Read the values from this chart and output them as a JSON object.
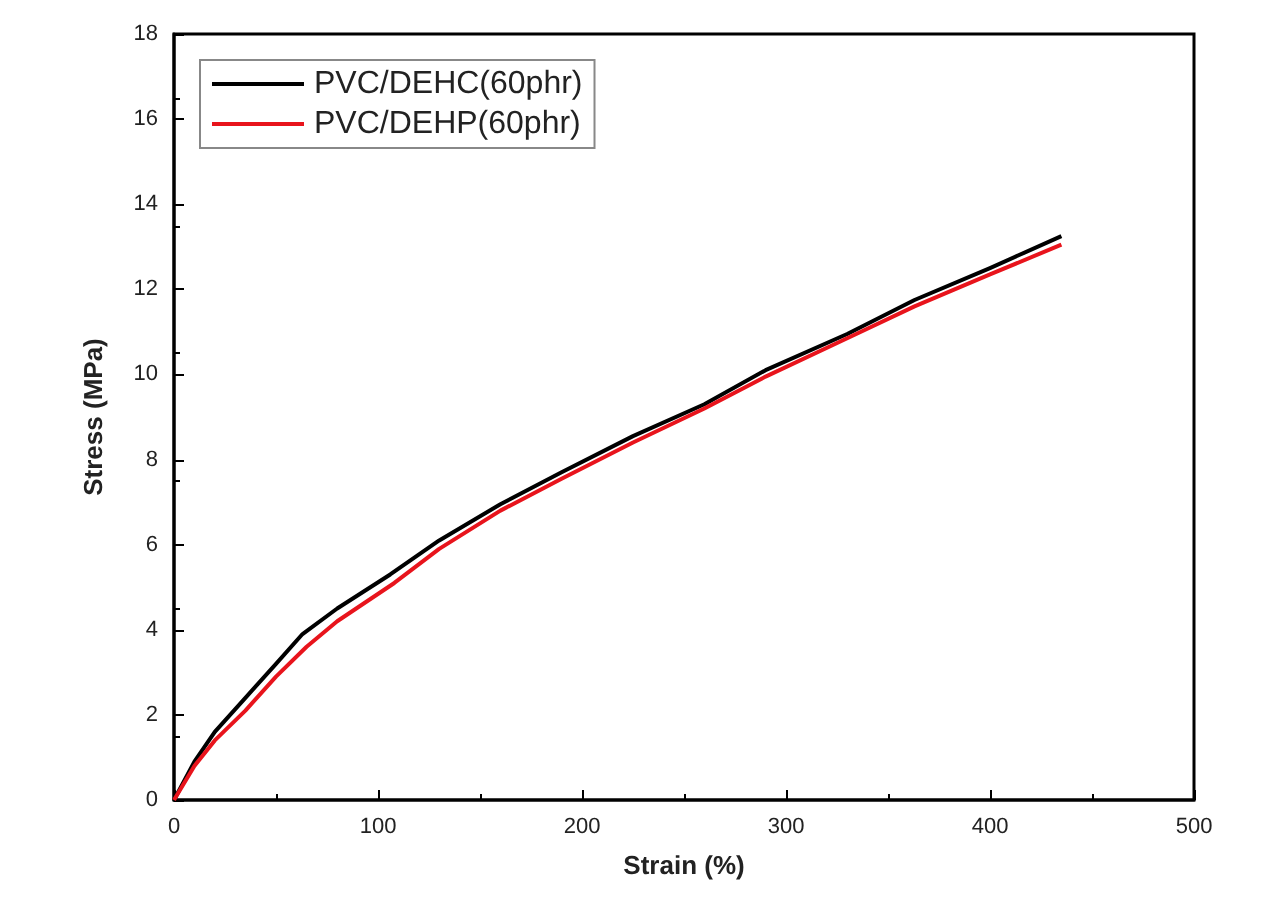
{
  "chart_data": {
    "type": "line",
    "xlabel": "Strain (%)",
    "ylabel": "Stress (MPa)",
    "xlim": [
      0,
      500
    ],
    "xticks": [
      0,
      100,
      200,
      300,
      400,
      500
    ],
    "ylim": [
      0,
      18
    ],
    "yticks": [
      0,
      2,
      4,
      6,
      8,
      10,
      12,
      14,
      16,
      18
    ],
    "grid": false,
    "legend": "top left",
    "marker": "none",
    "line_style": "solid",
    "series": [
      {
        "name": "PVC/DEHC(60phr)",
        "color": "#000000",
        "x": [
          0,
          10,
          20,
          35,
          50,
          63,
          80,
          106,
          130,
          160,
          190,
          225,
          260,
          290,
          330,
          363,
          400,
          435
        ],
        "values": [
          0,
          0.9,
          1.6,
          2.4,
          3.2,
          3.9,
          4.5,
          5.3,
          6.1,
          6.95,
          7.7,
          8.55,
          9.3,
          10.1,
          10.95,
          11.75,
          12.5,
          13.25
        ]
      },
      {
        "name": "PVC/DEHP(60phr)",
        "color": "#e8141c",
        "x": [
          0,
          10,
          20,
          35,
          50,
          65,
          80,
          108,
          130,
          160,
          190,
          225,
          260,
          290,
          330,
          363,
          400,
          435
        ],
        "values": [
          0,
          0.8,
          1.4,
          2.1,
          2.9,
          3.6,
          4.2,
          5.1,
          5.9,
          6.8,
          7.55,
          8.4,
          9.2,
          9.95,
          10.85,
          11.6,
          12.35,
          13.05
        ]
      }
    ]
  }
}
